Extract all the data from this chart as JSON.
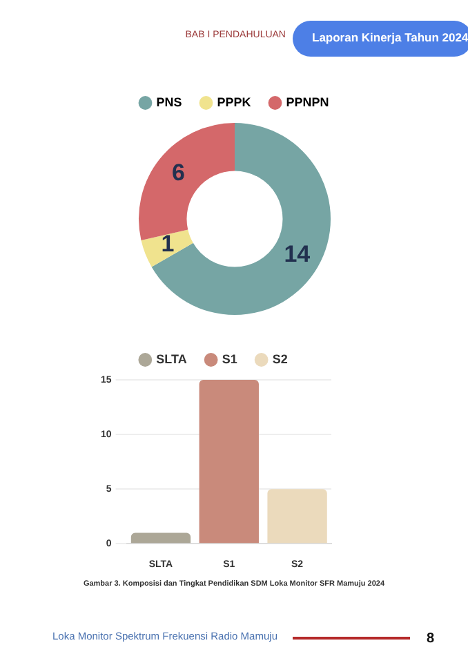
{
  "chart_data": [
    {
      "type": "donut",
      "categories": [
        "PNS",
        "PPPK",
        "PPNPN"
      ],
      "values": [
        14,
        1,
        6
      ],
      "colors": [
        "#76a5a4",
        "#f0e38e",
        "#d4686a"
      ],
      "data_labels": true,
      "legend": "top",
      "annotations": [
        "BAB I PENDAHULUAN",
        "Laporan Kinerja Tahun 2024"
      ]
    },
    {
      "type": "bar",
      "categories": [
        "SLTA",
        "S1",
        "S2"
      ],
      "series": [
        {
          "name": "SLTA",
          "color": "#aca797",
          "values": [
            1,
            null,
            null
          ]
        },
        {
          "name": "S1",
          "color": "#c98a7b",
          "values": [
            null,
            15,
            null
          ]
        },
        {
          "name": "S2",
          "color": "#ebdabc",
          "values": [
            null,
            null,
            5
          ]
        }
      ],
      "ylim": [
        0,
        15
      ],
      "yticks": [
        0,
        5,
        10,
        15
      ],
      "grid": "y",
      "legend": "top",
      "annotations": [
        "Gambar 3. Komposisi dan Tingkat Pendidikan SDM Loka Monitor SFR Mamuju 2024",
        "Loka Monitor Spektrum Frekuensi Radio Mamuju",
        "8"
      ]
    }
  ]
}
